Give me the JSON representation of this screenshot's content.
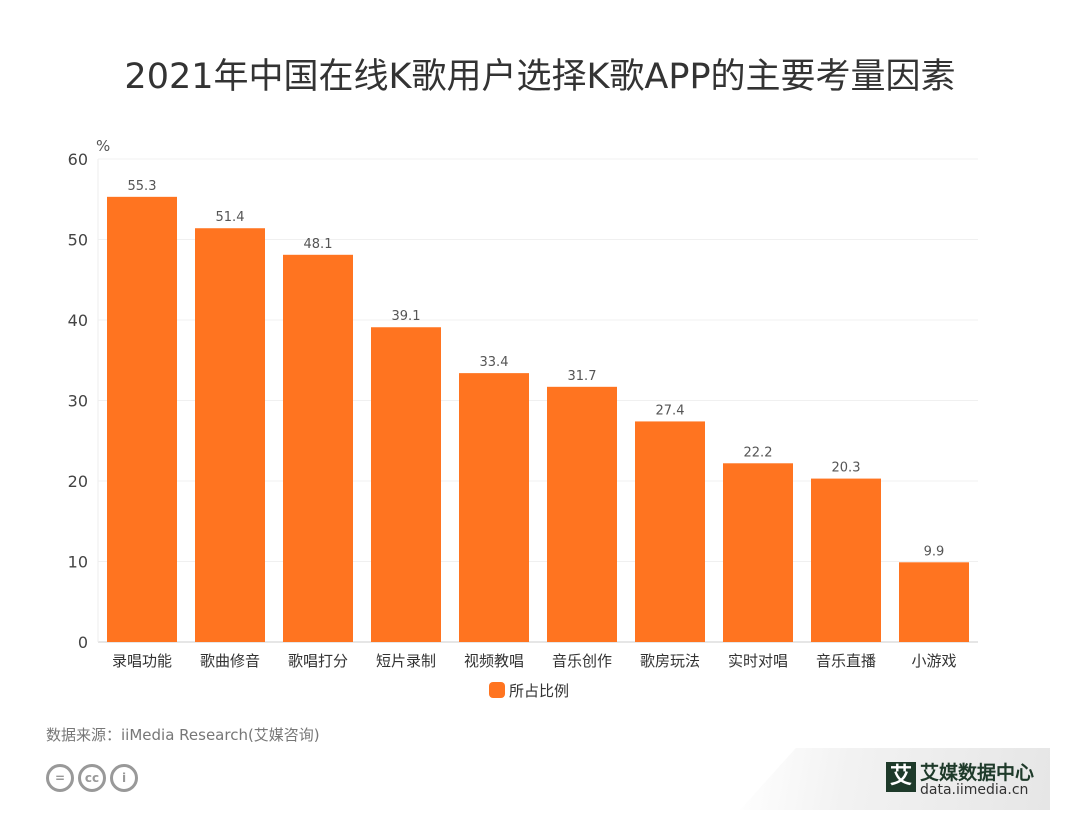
{
  "chart_data": {
    "type": "bar",
    "title": "2021年中国在线K歌用户选择K歌APP的主要考量因素",
    "ylabel": "%",
    "categories": [
      "录唱功能",
      "歌曲修音",
      "歌唱打分",
      "短片录制",
      "视频教唱",
      "音乐创作",
      "歌房玩法",
      "实时对唱",
      "音乐直播",
      "小游戏"
    ],
    "series": [
      {
        "name": "所占比例",
        "values": [
          55.3,
          51.4,
          48.1,
          39.1,
          33.4,
          31.7,
          27.4,
          22.2,
          20.3,
          9.9
        ]
      }
    ],
    "ylim": [
      0,
      60
    ],
    "yticks": [
      0,
      10,
      20,
      30,
      40,
      50,
      60
    ],
    "grid": true,
    "legend": "bottom",
    "color": "#FF7420"
  },
  "source": "数据来源：iiMedia Research(艾媒咨询)",
  "logo": {
    "mark": "艾",
    "name": "艾媒数据中心",
    "url": "data.iimedia.cn"
  }
}
